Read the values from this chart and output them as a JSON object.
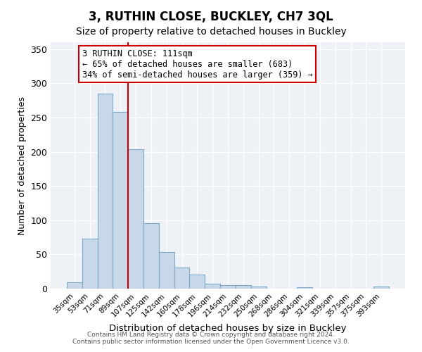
{
  "title": "3, RUTHIN CLOSE, BUCKLEY, CH7 3QL",
  "subtitle": "Size of property relative to detached houses in Buckley",
  "xlabel": "Distribution of detached houses by size in Buckley",
  "ylabel": "Number of detached properties",
  "bar_labels": [
    "35sqm",
    "53sqm",
    "71sqm",
    "89sqm",
    "107sqm",
    "125sqm",
    "142sqm",
    "160sqm",
    "178sqm",
    "196sqm",
    "214sqm",
    "232sqm",
    "250sqm",
    "268sqm",
    "286sqm",
    "304sqm",
    "321sqm",
    "339sqm",
    "357sqm",
    "375sqm",
    "393sqm"
  ],
  "bar_values": [
    9,
    73,
    285,
    258,
    204,
    96,
    54,
    31,
    21,
    7,
    5,
    5,
    3,
    0,
    0,
    2,
    0,
    0,
    0,
    0,
    3
  ],
  "bar_color": "#c8d8e8",
  "bar_edgecolor": "#7aaac8",
  "vline_x": 3.5,
  "vline_color": "#cc0000",
  "ylim": [
    0,
    360
  ],
  "yticks": [
    0,
    50,
    100,
    150,
    200,
    250,
    300,
    350
  ],
  "annotation_title": "3 RUTHIN CLOSE: 111sqm",
  "annotation_line1": "← 65% of detached houses are smaller (683)",
  "annotation_line2": "34% of semi-detached houses are larger (359) →",
  "annotation_box_color": "#cc0000",
  "footer_line1": "Contains HM Land Registry data © Crown copyright and database right 2024.",
  "footer_line2": "Contains public sector information licensed under the Open Government Licence v3.0.",
  "background_color": "#eef2f7",
  "title_fontsize": 12,
  "subtitle_fontsize": 10
}
